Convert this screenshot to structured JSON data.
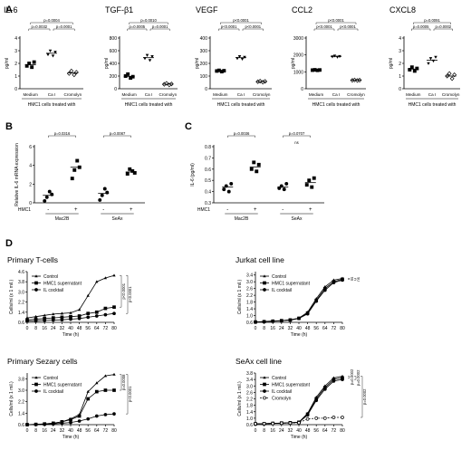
{
  "panels": [
    {
      "letter": "A"
    },
    {
      "letter": "B"
    },
    {
      "letter": "C"
    },
    {
      "letter": "D"
    }
  ],
  "chart_data": [
    {
      "panel": "A",
      "type": "scatter",
      "title": "IL-6",
      "ylabel": "pg/ml",
      "categories": [
        "Medium",
        "Ca I",
        "Cromolyn"
      ],
      "group_label": "HMC1 cells  treated with",
      "ylim": [
        0,
        4
      ],
      "yticks": [
        0,
        1,
        2,
        3,
        4
      ],
      "points": [
        [
          1.8,
          2.0,
          1.7,
          2.1
        ],
        [
          2.7,
          3.0,
          2.6,
          2.9
        ],
        [
          1.2,
          1.4,
          1.1,
          1.3
        ]
      ],
      "means": [
        1.9,
        2.8,
        1.25
      ],
      "brackets": [
        {
          "from": 0,
          "to": 2,
          "label": "p=0.0004"
        },
        {
          "from": 0,
          "to": 1,
          "label": "p=0.0032"
        },
        {
          "from": 1,
          "to": 2,
          "label": "p=0.0001"
        }
      ]
    },
    {
      "panel": "A",
      "type": "scatter",
      "title": "TGF-β1",
      "ylabel": "pg/ml",
      "categories": [
        "Medium",
        "Ca I",
        "Cromolyn"
      ],
      "group_label": "HMC1 cells  treated with",
      "ylim": [
        0,
        800
      ],
      "yticks": [
        0,
        200,
        400,
        600,
        800
      ],
      "points": [
        [
          200,
          230,
          170,
          190
        ],
        [
          480,
          530,
          450,
          510
        ],
        [
          70,
          85,
          60,
          75
        ]
      ],
      "means": [
        195,
        490,
        72
      ],
      "brackets": [
        {
          "from": 0,
          "to": 2,
          "label": "p=0.0010"
        },
        {
          "from": 0,
          "to": 1,
          "label": "p=0.0005"
        },
        {
          "from": 1,
          "to": 2,
          "label": "p=0.0001"
        }
      ]
    },
    {
      "panel": "A",
      "type": "scatter",
      "title": "VEGF",
      "ylabel": "pg/ml",
      "categories": [
        "Medium",
        "Ca I",
        "Cromolyn"
      ],
      "group_label": "HMC1 cells  treated with",
      "ylim": [
        0,
        400
      ],
      "yticks": [
        0,
        100,
        200,
        300,
        400
      ],
      "points": [
        [
          140,
          145,
          135,
          142
        ],
        [
          240,
          255,
          235,
          250
        ],
        [
          55,
          60,
          52,
          58
        ]
      ],
      "means": [
        140,
        245,
        56
      ],
      "brackets": [
        {
          "from": 0,
          "to": 2,
          "label": "p<0.0001"
        },
        {
          "from": 0,
          "to": 1,
          "label": "p<0.0001"
        },
        {
          "from": 1,
          "to": 2,
          "label": "p<0.0001"
        }
      ]
    },
    {
      "panel": "A",
      "type": "scatter",
      "title": "CCL2",
      "ylabel": "pg/ml",
      "categories": [
        "Medium",
        "Ca I",
        "Cromolyn"
      ],
      "group_label": "HMC1 cells  treated with",
      "ylim": [
        0,
        3000
      ],
      "yticks": [
        0,
        1000,
        2000,
        3000
      ],
      "points": [
        [
          1100,
          1120,
          1090,
          1110
        ],
        [
          1900,
          1950,
          1880,
          1920
        ],
        [
          500,
          520,
          490,
          510
        ]
      ],
      "means": [
        1105,
        1910,
        505
      ],
      "brackets": [
        {
          "from": 0,
          "to": 2,
          "label": "p<0.0001"
        },
        {
          "from": 0,
          "to": 1,
          "label": "p<0.0001"
        },
        {
          "from": 1,
          "to": 2,
          "label": "p<0.0001"
        }
      ]
    },
    {
      "panel": "A",
      "type": "scatter",
      "title": "CXCL8",
      "ylabel": "pg/ml",
      "categories": [
        "Medium",
        "Ca I",
        "Cromolyn"
      ],
      "group_label": "HMC1 cells  treated with",
      "ylim": [
        0,
        4
      ],
      "yticks": [
        0,
        1,
        2,
        3,
        4
      ],
      "points": [
        [
          1.5,
          1.7,
          1.4,
          1.6
        ],
        [
          2.0,
          2.4,
          2.2,
          2.5
        ],
        [
          1.0,
          1.2,
          0.8,
          1.1
        ]
      ],
      "means": [
        1.55,
        2.25,
        1.0
      ],
      "brackets": [
        {
          "from": 0,
          "to": 2,
          "label": "p=0.0091"
        },
        {
          "from": 0,
          "to": 1,
          "label": "p=0.0005"
        },
        {
          "from": 1,
          "to": 2,
          "label": "p=0.0002"
        }
      ]
    },
    {
      "panel": "B",
      "type": "scatter",
      "title": "",
      "ylabel": "Relative IL-6 mRNA expression",
      "ylim": [
        0,
        6
      ],
      "yticks": [
        0,
        2,
        4,
        6
      ],
      "row_label": "HMC1",
      "cond": [
        "-",
        "+",
        "-",
        "+"
      ],
      "groups": [
        "Mac2B",
        "SeAx"
      ],
      "points": [
        [
          0.2,
          0.6,
          1.2,
          0.9
        ],
        [
          2.6,
          3.5,
          4.5,
          3.8
        ],
        [
          0.3,
          0.8,
          1.5,
          1.1
        ],
        [
          3.1,
          3.6,
          3.4,
          3.2
        ]
      ],
      "means": [
        0.8,
        3.8,
        1.0,
        3.3
      ],
      "brackets": [
        {
          "from": 0,
          "to": 1,
          "label": "p=0.0316"
        },
        {
          "from": 2,
          "to": 3,
          "label": "p=0.0087"
        }
      ]
    },
    {
      "panel": "C",
      "type": "scatter",
      "title": "",
      "ylabel": "IL-6 (pg/ml)",
      "ylim": [
        0.3,
        0.8
      ],
      "yticks": [
        0.3,
        0.4,
        0.5,
        0.6,
        0.7,
        0.8
      ],
      "row_label": "HMC1",
      "cond": [
        "-",
        "+",
        "-",
        "+"
      ],
      "groups": [
        "Mac2B",
        "SeAx"
      ],
      "points": [
        [
          0.42,
          0.45,
          0.4,
          0.47
        ],
        [
          0.6,
          0.66,
          0.58,
          0.64
        ],
        [
          0.43,
          0.45,
          0.42,
          0.47
        ],
        [
          0.46,
          0.5,
          0.44,
          0.52
        ]
      ],
      "means": [
        0.44,
        0.62,
        0.44,
        0.48
      ],
      "brackets": [
        {
          "from": 0,
          "to": 1,
          "label": "p=0.0036"
        },
        {
          "from": 2,
          "to": 3,
          "label": "p=0.0707"
        }
      ],
      "bracket_note": {
        "text": "ns",
        "bracket": 1
      }
    },
    {
      "panel": "D",
      "type": "line",
      "title": "Primary T-cells",
      "xlabel": "Time (h)",
      "ylabel": "Cells/ml (x 1 mil.)",
      "x": [
        0,
        8,
        16,
        24,
        32,
        40,
        48,
        56,
        64,
        72,
        80
      ],
      "xticks": [
        0,
        8,
        16,
        24,
        32,
        40,
        48,
        56,
        64,
        72,
        80
      ],
      "ylim": [
        0.6,
        4.6
      ],
      "yticks": [
        0.6,
        1.4,
        2.2,
        3.0,
        3.8,
        4.6
      ],
      "legend_labels": [
        "Control",
        "HMC1 supernatant",
        "IL cocktail"
      ],
      "series": [
        {
          "name": "Control",
          "marker": "filled-triangle",
          "values": [
            0.95,
            1.05,
            1.15,
            1.25,
            1.3,
            1.35,
            1.6,
            2.7,
            3.8,
            4.1,
            4.3
          ]
        },
        {
          "name": "HMC1 supernatant",
          "marker": "filled-square",
          "values": [
            0.8,
            0.85,
            0.9,
            0.95,
            1.0,
            1.05,
            1.1,
            1.3,
            1.4,
            1.7,
            1.8
          ]
        },
        {
          "name": "IL cocktail",
          "marker": "filled-circle",
          "values": [
            0.7,
            0.72,
            0.75,
            0.78,
            0.8,
            0.85,
            0.9,
            1.0,
            1.1,
            1.2,
            1.3
          ]
        }
      ],
      "sig_labels": [
        "p<0.0001",
        "p<0.0001"
      ]
    },
    {
      "panel": "D",
      "type": "line",
      "title": "Jurkat cell line",
      "xlabel": "Time (h)",
      "ylabel": "Cells/ml (x 1 mil.)",
      "x": [
        0,
        8,
        16,
        24,
        32,
        40,
        48,
        56,
        64,
        72,
        80
      ],
      "xticks": [
        0,
        8,
        16,
        24,
        32,
        40,
        48,
        56,
        64,
        72,
        80
      ],
      "ylim": [
        0.6,
        3.6
      ],
      "yticks": [
        0.6,
        1.0,
        1.4,
        1.8,
        2.2,
        2.6,
        3.0,
        3.4
      ],
      "legend_labels": [
        "Control",
        "HMC1 supernatant",
        "IL cocktail"
      ],
      "series": [
        {
          "name": "Control",
          "marker": "filled-triangle",
          "values": [
            0.62,
            0.65,
            0.68,
            0.7,
            0.75,
            0.85,
            1.2,
            2.0,
            2.7,
            3.1,
            3.2
          ]
        },
        {
          "name": "HMC1 supernatant",
          "marker": "filled-square",
          "values": [
            0.62,
            0.64,
            0.67,
            0.7,
            0.74,
            0.84,
            1.15,
            1.9,
            2.6,
            3.0,
            3.15
          ]
        },
        {
          "name": "IL cocktail",
          "marker": "filled-circle",
          "values": [
            0.62,
            0.64,
            0.66,
            0.69,
            0.73,
            0.83,
            1.1,
            1.85,
            2.5,
            2.95,
            3.1
          ]
        }
      ],
      "sig_labels": [
        "ns",
        "ns"
      ]
    },
    {
      "panel": "D",
      "type": "line",
      "title": "Primary Sezary cells",
      "xlabel": "Time (h)",
      "ylabel": "Cells/ml (x 1 mil.)",
      "x": [
        0,
        8,
        16,
        24,
        32,
        40,
        48,
        56,
        64,
        72,
        80
      ],
      "xticks": [
        0,
        8,
        16,
        24,
        32,
        40,
        48,
        56,
        64,
        72,
        80
      ],
      "ylim": [
        0.6,
        4.2
      ],
      "yticks": [
        0.6,
        1.4,
        2.2,
        3.0,
        3.8
      ],
      "legend_labels": [
        "Control",
        "HMC1 supernatant",
        "IL cocktail"
      ],
      "series": [
        {
          "name": "Control",
          "marker": "filled-triangle",
          "values": [
            0.6,
            0.62,
            0.65,
            0.7,
            0.8,
            1.0,
            1.3,
            2.9,
            3.5,
            4.0,
            4.1
          ]
        },
        {
          "name": "HMC1 supernatant",
          "marker": "filled-square",
          "values": [
            0.6,
            0.62,
            0.65,
            0.7,
            0.8,
            0.95,
            1.2,
            2.4,
            2.9,
            3.0,
            3.0
          ]
        },
        {
          "name": "IL cocktail",
          "marker": "filled-circle",
          "values": [
            0.6,
            0.61,
            0.62,
            0.65,
            0.7,
            0.75,
            0.85,
            1.0,
            1.2,
            1.3,
            1.35
          ]
        }
      ],
      "sig_labels": [
        "p=0.0008",
        "p<0.0001"
      ]
    },
    {
      "panel": "D",
      "type": "line",
      "title": "SeAx cell line",
      "xlabel": "Time (h)",
      "ylabel": "Cells/ml (x 1 mil.)",
      "x": [
        0,
        8,
        16,
        24,
        32,
        40,
        48,
        56,
        64,
        72,
        80
      ],
      "xticks": [
        0,
        8,
        16,
        24,
        32,
        40,
        48,
        56,
        64,
        72,
        80
      ],
      "ylim": [
        0.6,
        3.8
      ],
      "yticks": [
        0.6,
        1.0,
        1.4,
        1.8,
        2.2,
        2.6,
        3.0,
        3.4,
        3.8
      ],
      "legend_labels": [
        "Control",
        "HMC1 supernatant",
        "IL cocktail",
        "Cromolyn"
      ],
      "series": [
        {
          "name": "Control",
          "marker": "filled-triangle",
          "values": [
            0.65,
            0.66,
            0.68,
            0.7,
            0.72,
            0.75,
            1.3,
            2.3,
            3.0,
            3.5,
            3.6
          ]
        },
        {
          "name": "HMC1 supernatant",
          "marker": "filled-square",
          "values": [
            0.65,
            0.66,
            0.68,
            0.7,
            0.72,
            0.75,
            1.25,
            2.2,
            2.9,
            3.4,
            3.5
          ]
        },
        {
          "name": "IL cocktail",
          "marker": "filled-circle",
          "values": [
            0.65,
            0.66,
            0.67,
            0.69,
            0.71,
            0.74,
            1.2,
            2.1,
            2.8,
            3.3,
            3.4
          ]
        },
        {
          "name": "Cromolyn",
          "marker": "open-circle",
          "dashed": true,
          "values": [
            0.65,
            0.66,
            0.67,
            0.69,
            0.7,
            0.72,
            0.95,
            1.0,
            1.0,
            1.05,
            1.05
          ]
        }
      ],
      "sig_labels": [
        "p=0.0002",
        "p=0.0002",
        "p=0.0002"
      ]
    }
  ],
  "colors": {
    "ink": "#000000",
    "bracket": "#333333"
  }
}
